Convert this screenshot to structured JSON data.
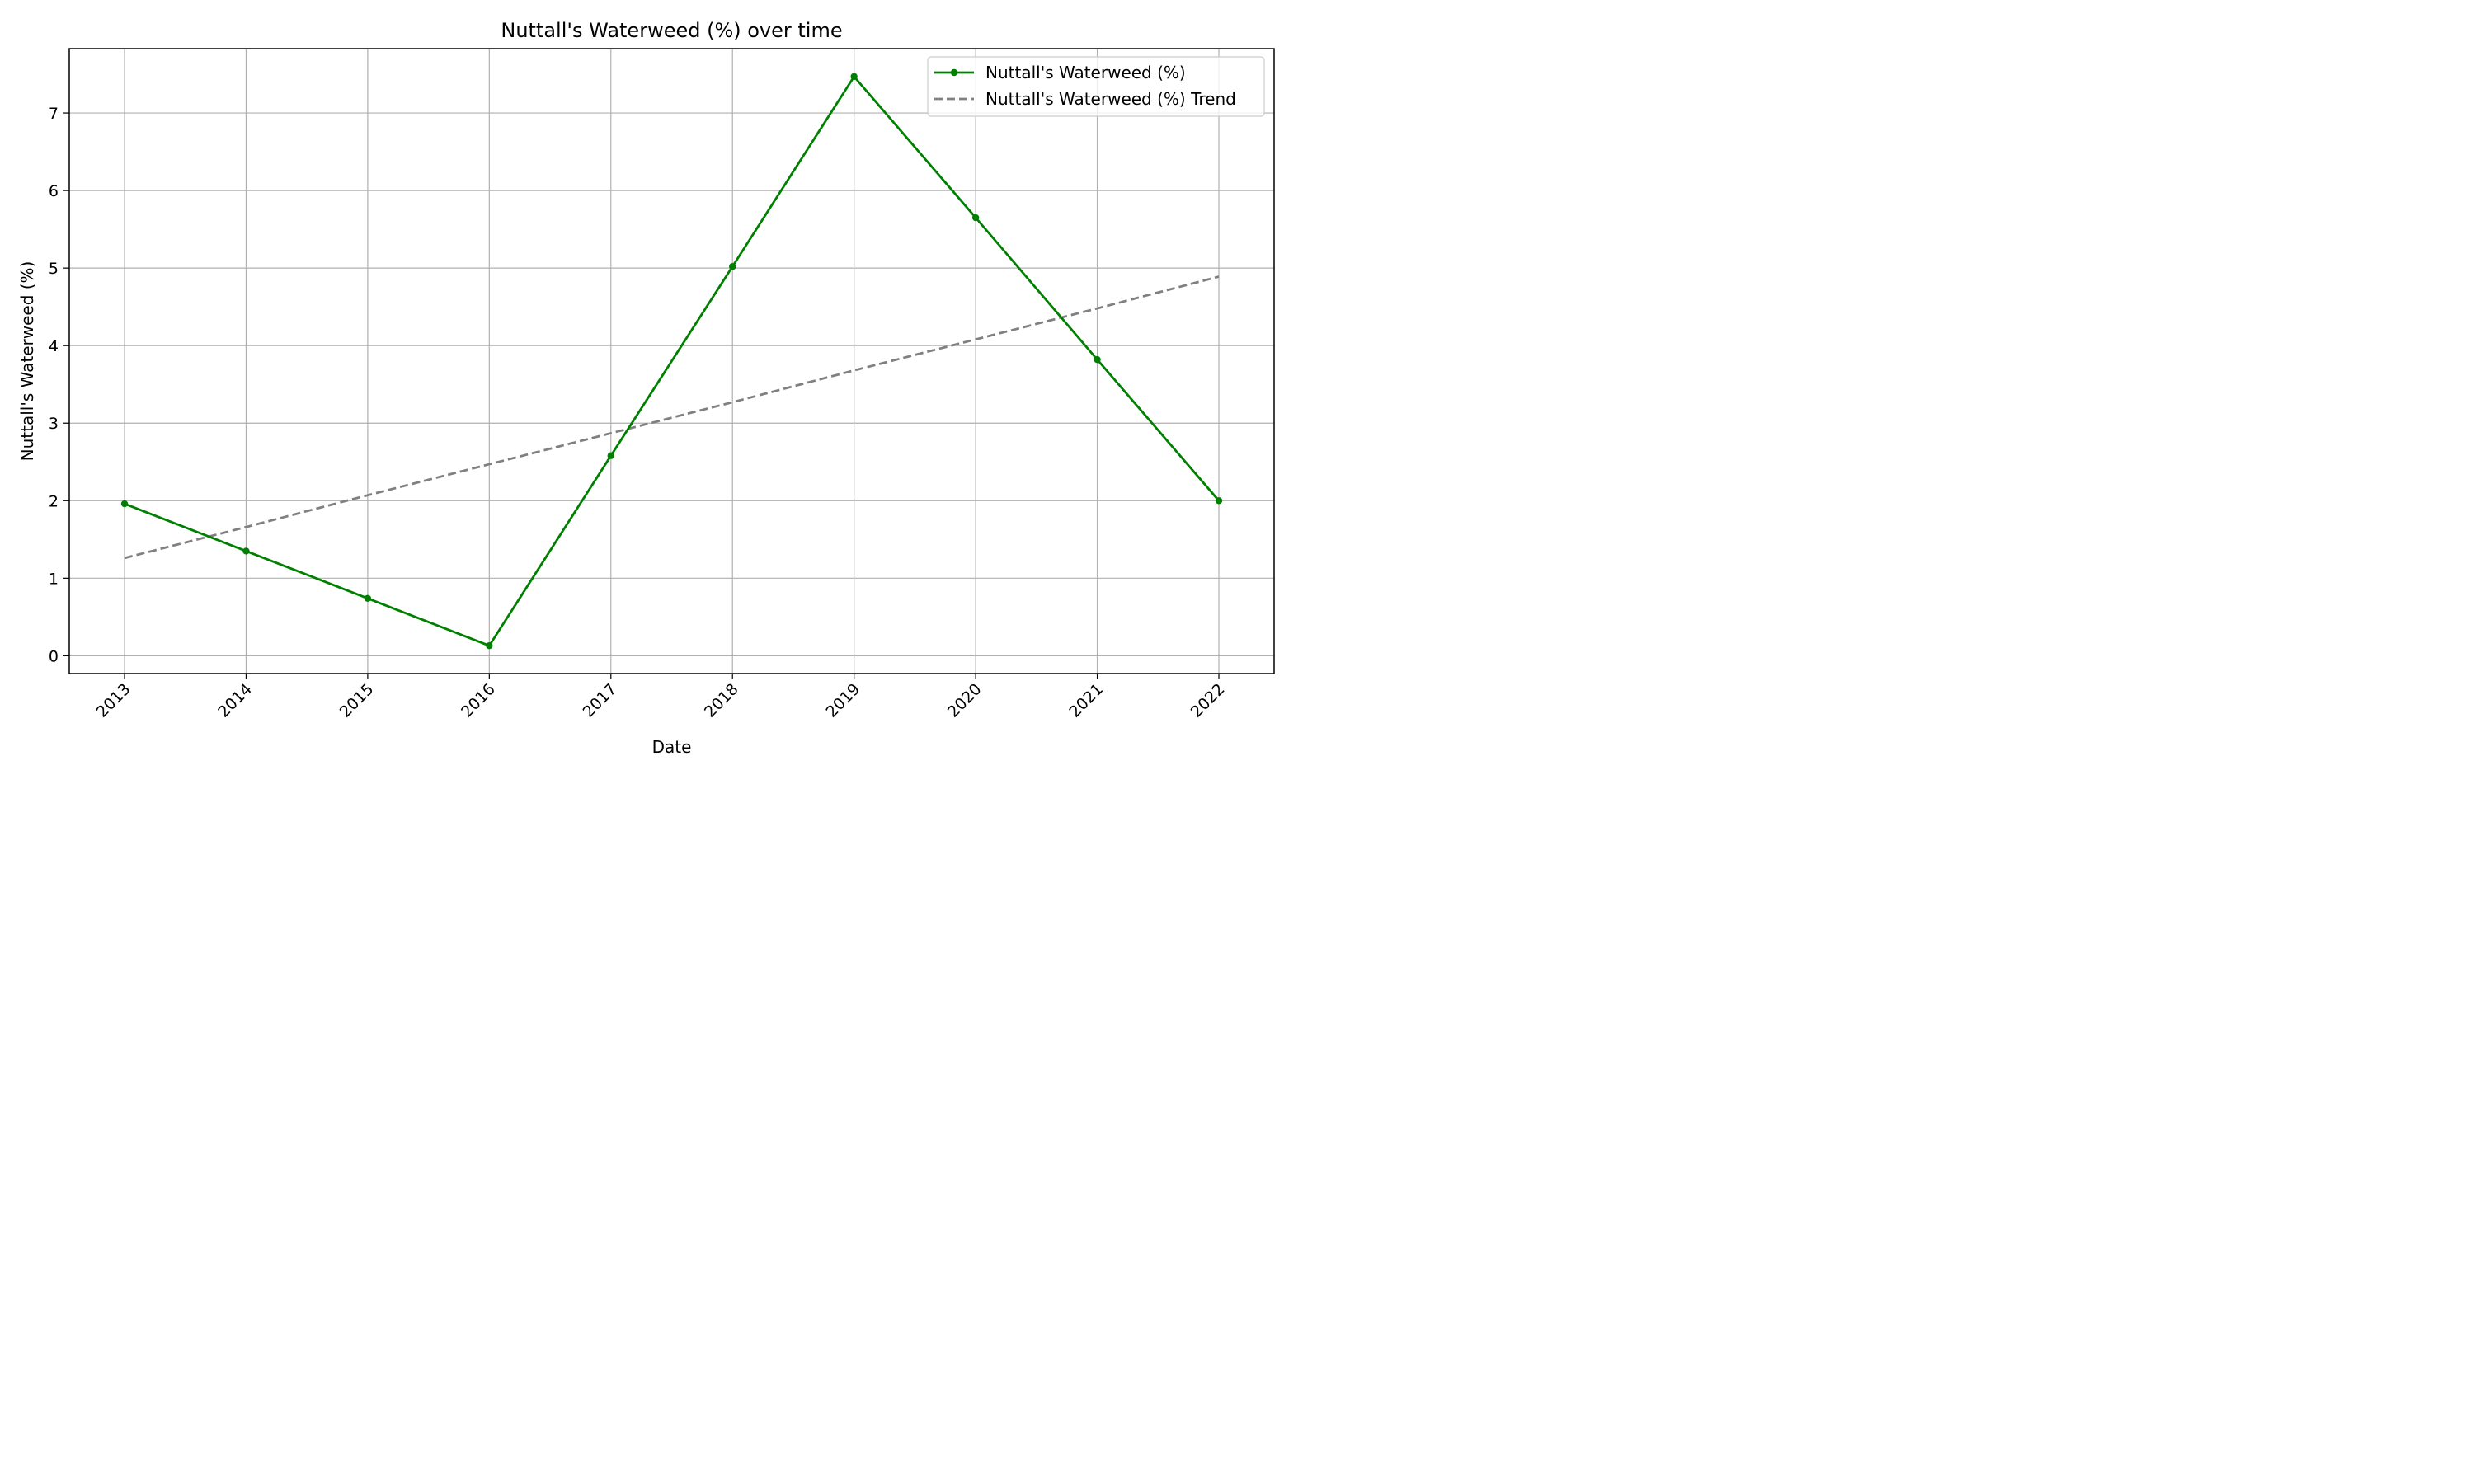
{
  "chart_data": {
    "type": "line",
    "title": "Nuttall's Waterweed (%) over time",
    "xlabel": "Date",
    "ylabel": "Nuttall's Waterweed (%)",
    "x": [
      "2013",
      "2014",
      "2015",
      "2016",
      "2017",
      "2018",
      "2019",
      "2020",
      "2021",
      "2022"
    ],
    "yticks": [
      0,
      1,
      2,
      3,
      4,
      5,
      6,
      7
    ],
    "ylim": [
      -0.23,
      7.83
    ],
    "grid": true,
    "legend_position": "top-right",
    "series": [
      {
        "name": "Nuttall's Waterweed (%)",
        "style": "solid",
        "marker": "circle",
        "color": "#008000",
        "values": [
          1.96,
          1.35,
          0.74,
          0.13,
          2.58,
          5.02,
          7.47,
          5.65,
          3.82,
          2.0
        ]
      },
      {
        "name": "Nuttall's Waterweed (%) Trend",
        "style": "dashed",
        "color": "#808080",
        "values": [
          1.26,
          1.66,
          2.07,
          2.47,
          2.87,
          3.27,
          3.68,
          4.08,
          4.48,
          4.89
        ]
      }
    ]
  }
}
